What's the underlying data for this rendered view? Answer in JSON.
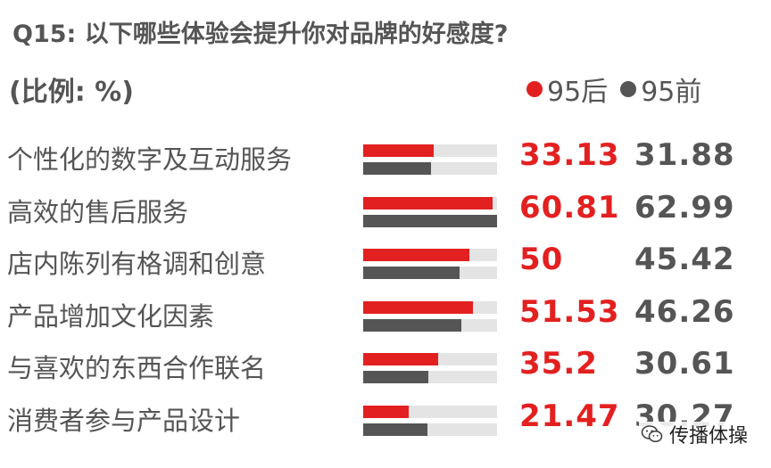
{
  "colors": {
    "post95": "#e32020",
    "pre95": "#555555",
    "track": "#e4e4e4",
    "text": "#555555"
  },
  "watermark": {
    "text": "传播体操",
    "icon": "wechat-icon"
  },
  "chart_data": {
    "type": "bar",
    "title": "Q15: 以下哪些体验会提升你对品牌的好感度?",
    "subtitle": "(比例: %)",
    "legend_position": "top-right",
    "xlim": [
      0,
      63
    ],
    "categories": [
      "个性化的数字及互动服务",
      "高效的售后服务",
      "店内陈列有格调和创意",
      "产品增加文化因素",
      "与喜欢的东西合作联名",
      "消费者参与产品设计"
    ],
    "series": [
      {
        "name": "95后",
        "color": "#e32020",
        "values": [
          33.13,
          60.81,
          50,
          51.53,
          35.2,
          21.47
        ],
        "labels": [
          "33.13",
          "60.81",
          "50",
          "51.53",
          "35.2",
          "21.47"
        ]
      },
      {
        "name": "95前",
        "color": "#555555",
        "values": [
          31.88,
          62.99,
          45.42,
          46.26,
          30.61,
          30.27
        ],
        "labels": [
          "31.88",
          "62.99",
          "45.42",
          "46.26",
          "30.61",
          "30.27"
        ]
      }
    ]
  }
}
